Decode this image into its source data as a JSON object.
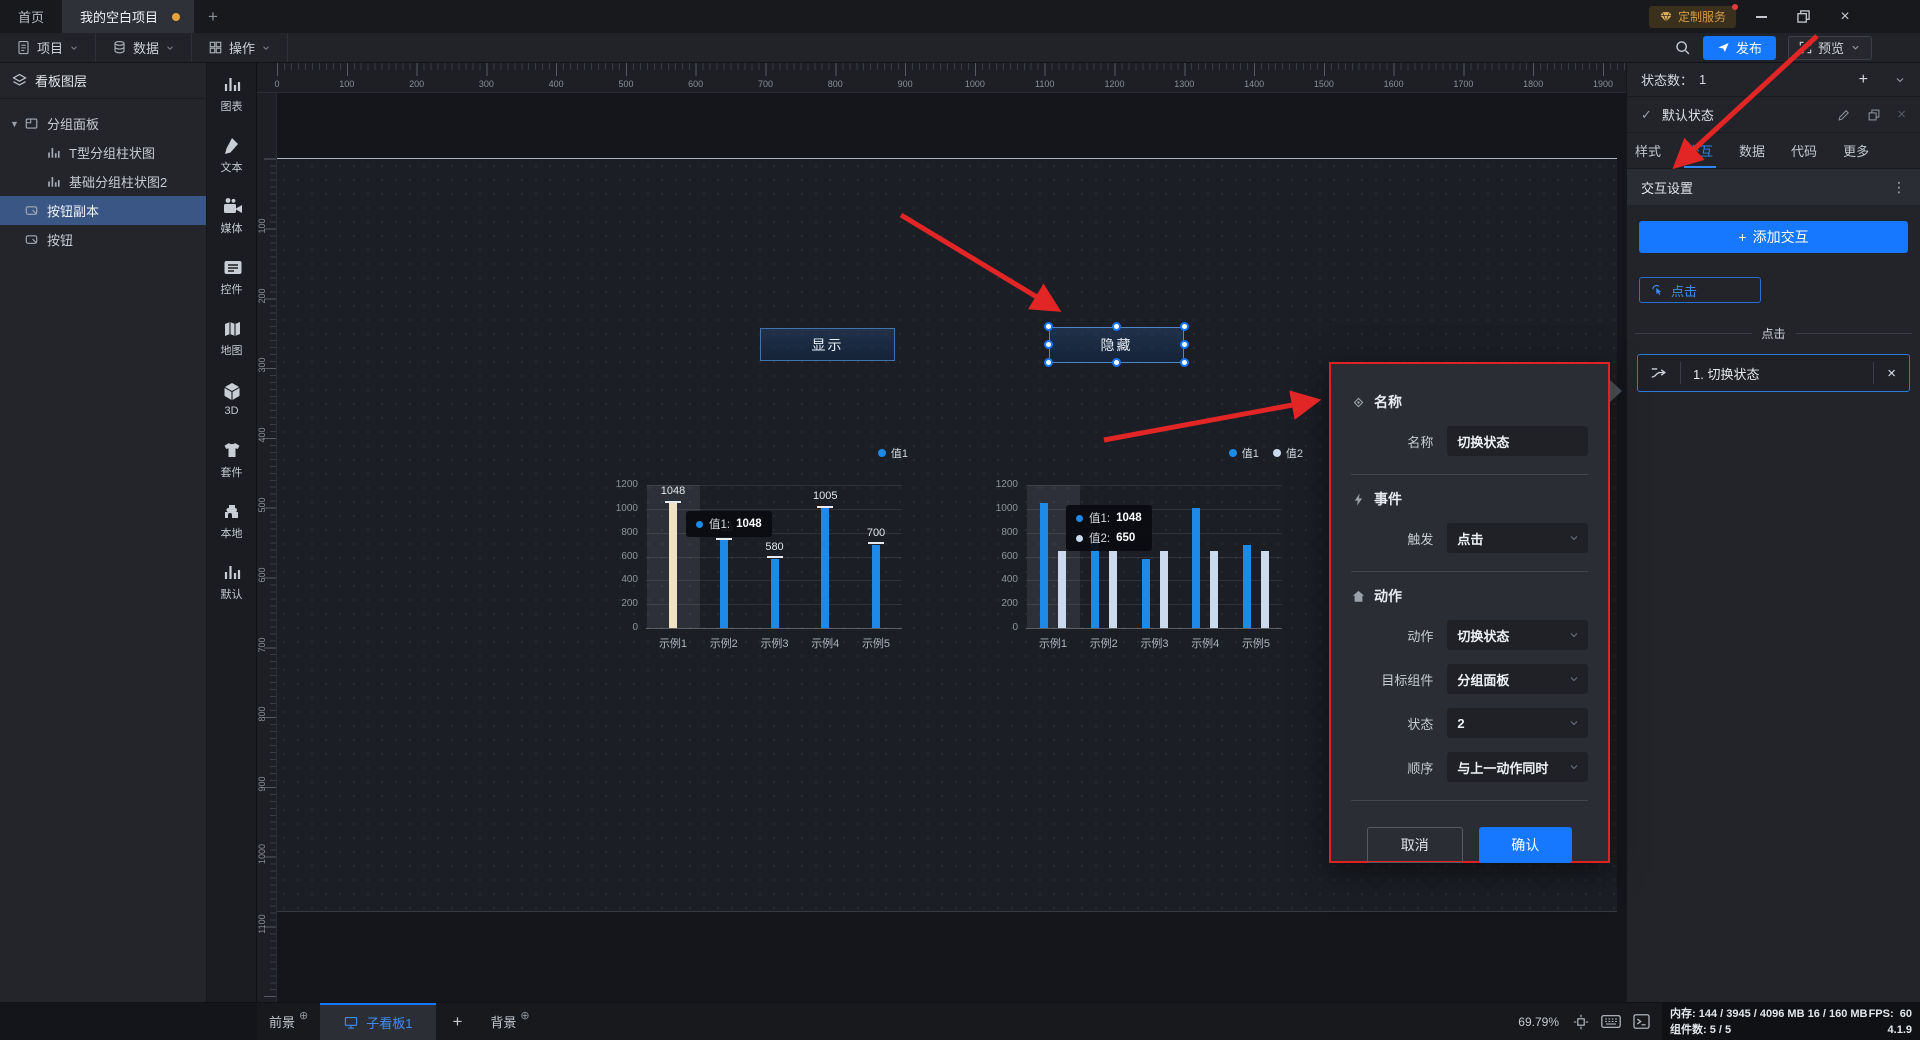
{
  "colors": {
    "accent_blue": "#1677ff",
    "chart_blue": "#1e8ae8",
    "chart_pale": "#ccdaee",
    "chart_cream": "#efe2c4",
    "annotation_red": "#e02222",
    "tab_dot_orange": "#e6a23c"
  },
  "titlebar": {
    "home_tab": "首页",
    "project_tab": "我的空白项目",
    "new_tab": "+",
    "service_badge": "定制服务"
  },
  "menubar": {
    "items": [
      {
        "label": "项目",
        "icon": "doc-icon"
      },
      {
        "label": "数据",
        "icon": "database-icon"
      },
      {
        "label": "操作",
        "icon": "grid-icon"
      }
    ],
    "publish": "发布",
    "preview": "预览"
  },
  "layer_panel": {
    "title": "看板图层",
    "items": [
      {
        "label": "分组面板",
        "level": 0,
        "icon": "group-icon",
        "expandable": true,
        "selected": false
      },
      {
        "label": "T型分组柱状图",
        "level": 1,
        "icon": "chart-icon",
        "expandable": false,
        "selected": false
      },
      {
        "label": "基础分组柱状图2",
        "level": 1,
        "icon": "chart-icon",
        "expandable": false,
        "selected": false
      },
      {
        "label": "按钮副本",
        "level": 0,
        "icon": "button-icon",
        "expandable": false,
        "selected": true
      },
      {
        "label": "按钮",
        "level": 0,
        "icon": "button-icon",
        "expandable": false,
        "selected": false
      }
    ]
  },
  "toolbox": [
    {
      "label": "图表",
      "icon": "chart-icon"
    },
    {
      "label": "文本",
      "icon": "text-icon"
    },
    {
      "label": "媒体",
      "icon": "media-icon"
    },
    {
      "label": "控件",
      "icon": "widget-icon"
    },
    {
      "label": "地图",
      "icon": "map-icon"
    },
    {
      "label": "3D",
      "icon": "cube-icon"
    },
    {
      "label": "套件",
      "icon": "kit-icon"
    },
    {
      "label": "本地",
      "icon": "puzzle-icon"
    },
    {
      "label": "默认",
      "icon": "chart-icon"
    }
  ],
  "rulers": {
    "h_labels": [
      "0",
      "100",
      "200",
      "300",
      "400",
      "500",
      "600",
      "700",
      "800",
      "900",
      "1000",
      "1100",
      "1200",
      "1300",
      "1400",
      "1500",
      "1600",
      "1700",
      "1800",
      "1900"
    ],
    "v_labels": [
      "100",
      "200",
      "300",
      "400",
      "500",
      "600",
      "700",
      "800",
      "900",
      "1000",
      "1100"
    ]
  },
  "canvas": {
    "show_button": "显示",
    "hide_button": "隐藏"
  },
  "chart_data": [
    {
      "type": "bar",
      "name": "T型分组柱状图",
      "categories": [
        "示例1",
        "示例2",
        "示例3",
        "示例4",
        "示例5"
      ],
      "series": [
        {
          "name": "值1",
          "color": "#1e8ae8",
          "values": [
            1048,
            735,
            580,
            1005,
            700
          ]
        }
      ],
      "value_labels": [
        "1048",
        "735",
        "580",
        "1005",
        "700"
      ],
      "ylim": [
        0,
        1200
      ],
      "yticks": [
        0,
        200,
        400,
        600,
        800,
        1000,
        1200
      ],
      "grid": true,
      "legend_position": "top-right",
      "bar_caps": true,
      "highlight_category": 0,
      "highlight_bar": {
        "category": 0,
        "series": 0,
        "color": "#efe2c4"
      },
      "tooltip": {
        "rows": [
          {
            "name": "值1",
            "value": "1048",
            "color": "#1e8ae8"
          }
        ]
      }
    },
    {
      "type": "bar",
      "name": "基础分组柱状图2",
      "categories": [
        "示例1",
        "示例2",
        "示例3",
        "示例4",
        "示例5"
      ],
      "series": [
        {
          "name": "值1",
          "color": "#1e8ae8",
          "values": [
            1048,
            735,
            580,
            1005,
            700
          ]
        },
        {
          "name": "值2",
          "color": "#ccdaee",
          "values": [
            650,
            650,
            650,
            650,
            650
          ]
        }
      ],
      "ylim": [
        0,
        1200
      ],
      "yticks": [
        0,
        200,
        400,
        600,
        800,
        1000,
        1200
      ],
      "grid": true,
      "legend_position": "top-right",
      "bar_caps": false,
      "highlight_category": 0,
      "tooltip": {
        "rows": [
          {
            "name": "值1",
            "value": "1048",
            "color": "#1e8ae8"
          },
          {
            "name": "值2",
            "value": "650",
            "color": "#ccdaee"
          }
        ]
      }
    }
  ],
  "modal": {
    "sections": [
      {
        "title": "名称",
        "icon": "diamond-icon",
        "rows": [
          {
            "label": "名称",
            "value": "切换状态",
            "control": "input"
          }
        ]
      },
      {
        "title": "事件",
        "icon": "lightning-icon",
        "rows": [
          {
            "label": "触发",
            "value": "点击",
            "control": "select"
          }
        ]
      },
      {
        "title": "动作",
        "icon": "home-icon",
        "rows": [
          {
            "label": "动作",
            "value": "切换状态",
            "control": "select"
          },
          {
            "label": "目标组件",
            "value": "分组面板",
            "control": "select"
          },
          {
            "label": "状态",
            "value": "2",
            "control": "select"
          },
          {
            "label": "顺序",
            "value": "与上一动作同时",
            "control": "select"
          }
        ]
      }
    ],
    "cancel": "取消",
    "confirm": "确认"
  },
  "right_panel": {
    "state_count_label": "状态数：",
    "state_count": "1",
    "state_name": "默认状态",
    "tabs": [
      "样式",
      "交互",
      "数据",
      "代码",
      "更多"
    ],
    "active_tab": "交互",
    "section_title": "交互设置",
    "add_interaction": "添加交互",
    "event_badge": "点击",
    "group_divider": "点击",
    "interaction_item": "1. 切换状态"
  },
  "statusbar": {
    "foreground": "前景",
    "board_tab": "子看板1",
    "background": "背景",
    "zoom": "69.79%",
    "memory_label": "内存:",
    "memory_value": "144 / 3945 / 4096 MB  16 / 160 MB",
    "fps_label": "FPS:",
    "fps_value": "60",
    "components_label": "组件数:",
    "components_value": "5 / 5",
    "version": "4.1.9"
  }
}
